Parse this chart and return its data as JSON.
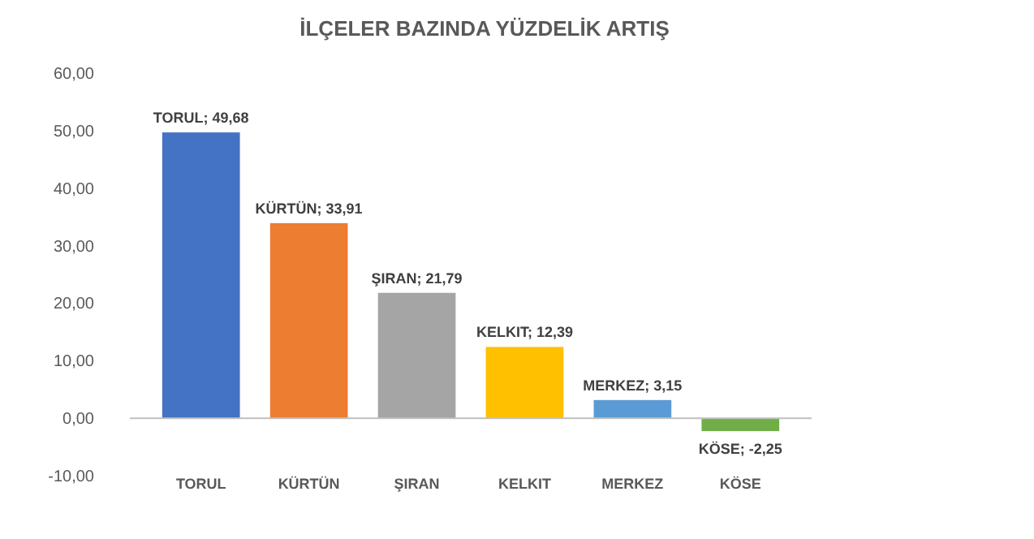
{
  "chart_data": {
    "type": "bar",
    "title": "İLÇELER BAZINDA YÜZDELİK ARTIŞ",
    "categories": [
      "TORUL",
      "KÜRTÜN",
      "ŞIRAN",
      "KELKIT",
      "MERKEZ",
      "KÖSE"
    ],
    "values": [
      49.68,
      33.91,
      21.79,
      12.39,
      3.15,
      -2.25
    ],
    "colors": [
      "#4472c4",
      "#ed7d31",
      "#a5a5a5",
      "#ffc000",
      "#5b9bd5",
      "#70ad47"
    ],
    "value_labels": [
      "TORUL; 49,68",
      "KÜRTÜN; 33,91",
      "ŞIRAN; 21,79",
      "KELKIT; 12,39",
      "MERKEZ; 3,15",
      "KÖSE; -2,25"
    ],
    "ylim": [
      -10,
      60
    ],
    "yticks": [
      {
        "value": -10,
        "label": "-10,00"
      },
      {
        "value": 0,
        "label": "0,00"
      },
      {
        "value": 10,
        "label": "10,00"
      },
      {
        "value": 20,
        "label": "20,00"
      },
      {
        "value": 30,
        "label": "30,00"
      },
      {
        "value": 40,
        "label": "40,00"
      },
      {
        "value": 50,
        "label": "50,00"
      },
      {
        "value": 60,
        "label": "60,00"
      }
    ]
  }
}
